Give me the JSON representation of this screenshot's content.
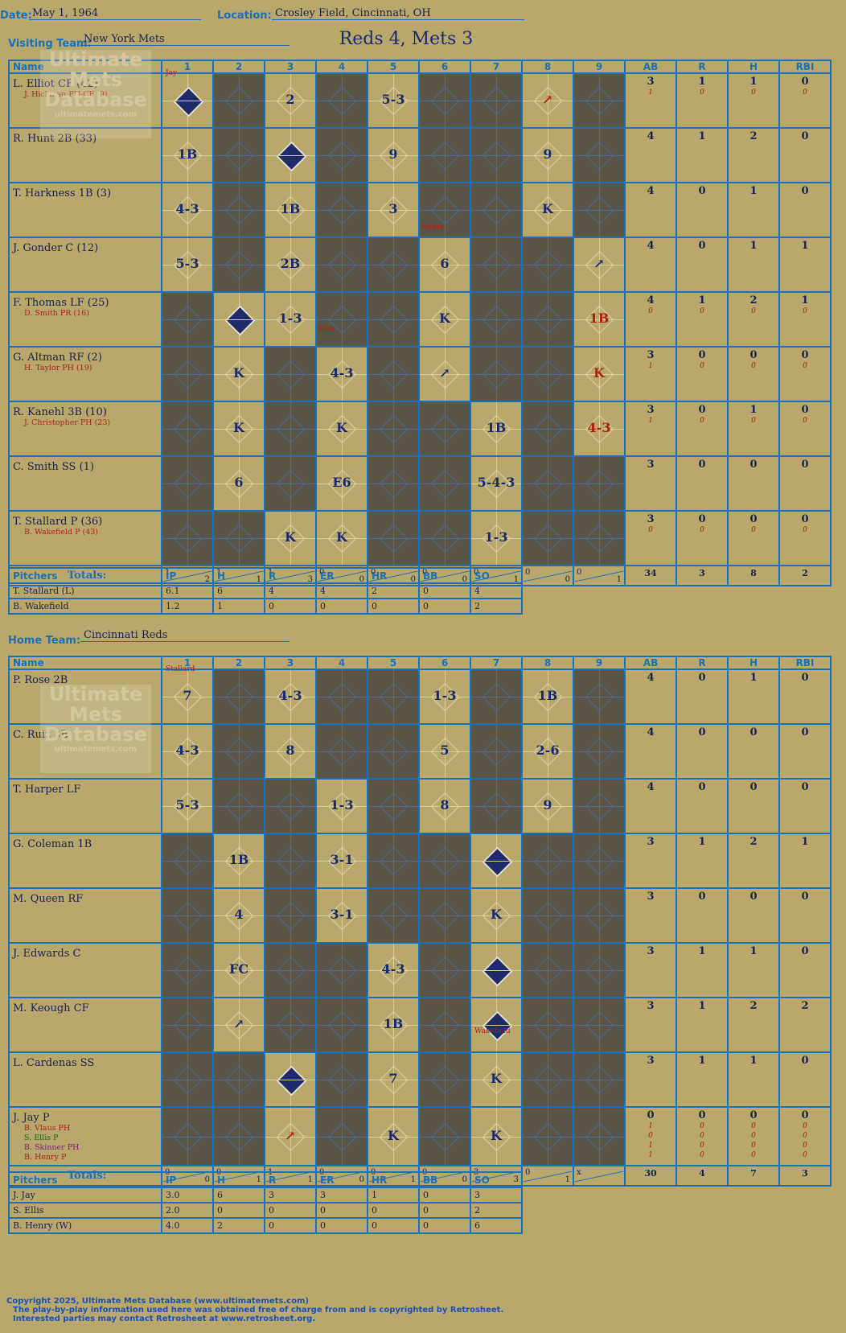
{
  "header": {
    "date_label": "Date:",
    "date": "May 1, 1964",
    "location_label": "Location:",
    "location": "Crosley Field, Cincinnati, OH",
    "visiting_label": "Visiting Team:",
    "visiting_team": "New York Mets",
    "home_label": "Home Team:",
    "home_team": "Cincinnati Reds",
    "final_score": "Reds 4, Mets 3"
  },
  "columns": {
    "name": "Name",
    "innings": [
      "1",
      "2",
      "3",
      "4",
      "5",
      "6",
      "7",
      "8",
      "9"
    ],
    "ab": "AB",
    "r": "R",
    "h": "H",
    "rbi": "RBI",
    "totals": "Totals:",
    "r_short": "R",
    "h_short": "H"
  },
  "watermark": {
    "line1": "Ultimate",
    "line2": "Mets",
    "line3": "Database",
    "url": "ultimatemets.com"
  },
  "visitors": {
    "players": [
      {
        "name": "L. Elliot CF (42)",
        "subs": [
          "J. Hickman PH-CF (9)"
        ],
        "ab": "3",
        "r": "1",
        "h": "1",
        "rbi": "0",
        "sub_stats": [
          [
            "1",
            "0",
            "0",
            "0"
          ]
        ]
      },
      {
        "name": "R. Hunt 2B (33)",
        "subs": [],
        "ab": "4",
        "r": "1",
        "h": "2",
        "rbi": "0",
        "sub_stats": []
      },
      {
        "name": "T. Harkness 1B (3)",
        "subs": [],
        "ab": "4",
        "r": "0",
        "h": "1",
        "rbi": "0",
        "sub_stats": []
      },
      {
        "name": "J. Gonder C (12)",
        "subs": [],
        "ab": "4",
        "r": "0",
        "h": "1",
        "rbi": "1",
        "sub_stats": []
      },
      {
        "name": "F. Thomas LF (25)",
        "subs": [
          "D. Smith PR (16)"
        ],
        "ab": "4",
        "r": "1",
        "h": "2",
        "rbi": "1",
        "sub_stats": [
          [
            "0",
            "0",
            "0",
            "0"
          ]
        ]
      },
      {
        "name": "G. Altman RF (2)",
        "subs": [
          "H. Taylor PH (19)"
        ],
        "ab": "3",
        "r": "0",
        "h": "0",
        "rbi": "0",
        "sub_stats": [
          [
            "1",
            "0",
            "0",
            "0"
          ]
        ]
      },
      {
        "name": "R. Kanehl 3B (10)",
        "subs": [
          "J. Christopher PH (23)"
        ],
        "ab": "3",
        "r": "0",
        "h": "1",
        "rbi": "0",
        "sub_stats": [
          [
            "1",
            "0",
            "0",
            "0"
          ]
        ]
      },
      {
        "name": "C. Smith SS (1)",
        "subs": [],
        "ab": "3",
        "r": "0",
        "h": "0",
        "rbi": "0",
        "sub_stats": []
      },
      {
        "name": "T. Stallard P (36)",
        "subs": [
          "B. Wakefield P (43)"
        ],
        "ab": "3",
        "r": "0",
        "h": "0",
        "rbi": "0",
        "sub_stats": [
          [
            "0",
            "0",
            "0",
            "0"
          ]
        ]
      }
    ],
    "innings_rh": [
      [
        "1",
        "2"
      ],
      [
        "1",
        "1"
      ],
      [
        "1",
        "3"
      ],
      [
        "0",
        "0"
      ],
      [
        "0",
        "0"
      ],
      [
        "0",
        "0"
      ],
      [
        "0",
        "1"
      ],
      [
        "0",
        "0"
      ],
      [
        "0",
        "1"
      ]
    ],
    "totals": {
      "ab": "34",
      "r": "3",
      "h": "8",
      "rbi": "2"
    }
  },
  "visitor_cells": [
    [
      "run",
      "dark",
      "2",
      "dark",
      "5-3",
      "dark",
      "dark",
      "arrow-red",
      "dark"
    ],
    [
      "1B",
      "dark",
      "run",
      "dark",
      "9",
      "dark",
      "dark",
      "9",
      "dark"
    ],
    [
      "4-3",
      "dark",
      "1B",
      "dark",
      "3",
      "dark",
      "dark",
      "K",
      "dark"
    ],
    [
      "5-3",
      "dark",
      "2B",
      "dark",
      "dark",
      "6",
      "dark",
      "dark",
      "arrow"
    ],
    [
      "dark",
      "run",
      "1-3",
      "dark",
      "dark",
      "K",
      "dark",
      "dark",
      "1B-red"
    ],
    [
      "dark",
      "K",
      "dark",
      "4-3",
      "dark",
      "arrow",
      "dark",
      "dark",
      "K-red"
    ],
    [
      "dark",
      "K",
      "dark",
      "K",
      "dark",
      "dark",
      "1B",
      "dark",
      "4-3-red"
    ],
    [
      "dark",
      "6",
      "dark",
      "E6",
      "dark",
      "dark",
      "5-4-3",
      "dark",
      "dark"
    ],
    [
      "dark",
      "dark",
      "K",
      "K",
      "dark",
      "dark",
      "1-3",
      "dark",
      "dark"
    ]
  ],
  "visitor_notes": {
    "jay": "Jay",
    "henry": "Henry",
    "ellis": "Ellis"
  },
  "visitor_pitching": {
    "headers": [
      "Pitchers",
      "IP",
      "H",
      "R",
      "ER",
      "HR",
      "BB",
      "SO"
    ],
    "rows": [
      [
        "T. Stallard (L)",
        "6.1",
        "6",
        "4",
        "4",
        "2",
        "0",
        "4"
      ],
      [
        "B. Wakefield",
        "1.2",
        "1",
        "0",
        "0",
        "0",
        "0",
        "2"
      ]
    ]
  },
  "home": {
    "players": [
      {
        "name": "P. Rose 2B",
        "subs": [],
        "ab": "4",
        "r": "0",
        "h": "1",
        "rbi": "0",
        "sub_stats": []
      },
      {
        "name": "C. Ruiz 3B",
        "subs": [],
        "ab": "4",
        "r": "0",
        "h": "0",
        "rbi": "0",
        "sub_stats": []
      },
      {
        "name": "T. Harper LF",
        "subs": [],
        "ab": "4",
        "r": "0",
        "h": "0",
        "rbi": "0",
        "sub_stats": []
      },
      {
        "name": "G. Coleman 1B",
        "subs": [],
        "ab": "3",
        "r": "1",
        "h": "2",
        "rbi": "1",
        "sub_stats": []
      },
      {
        "name": "M. Queen RF",
        "subs": [],
        "ab": "3",
        "r": "0",
        "h": "0",
        "rbi": "0",
        "sub_stats": []
      },
      {
        "name": "J. Edwards C",
        "subs": [],
        "ab": "3",
        "r": "1",
        "h": "1",
        "rbi": "0",
        "sub_stats": []
      },
      {
        "name": "M. Keough CF",
        "subs": [],
        "ab": "3",
        "r": "1",
        "h": "2",
        "rbi": "2",
        "sub_stats": []
      },
      {
        "name": "L. Cardenas SS",
        "subs": [],
        "ab": "3",
        "r": "1",
        "h": "1",
        "rbi": "0",
        "sub_stats": []
      },
      {
        "name": "J. Jay P",
        "subs": [
          "B. Vlaus PH",
          "S. Ellis P",
          "B. Skinner PH",
          "B. Henry P"
        ],
        "ab": "0",
        "r": "0",
        "h": "0",
        "rbi": "0",
        "sub_stats": [
          [
            "1",
            "0",
            "0",
            "0"
          ],
          [
            "0",
            "0",
            "0",
            "0"
          ],
          [
            "1",
            "0",
            "0",
            "0"
          ],
          [
            "1",
            "0",
            "0",
            "0"
          ]
        ]
      }
    ],
    "innings_rh": [
      [
        "0",
        "0"
      ],
      [
        "0",
        "1"
      ],
      [
        "1",
        "1"
      ],
      [
        "0",
        "0"
      ],
      [
        "0",
        "1"
      ],
      [
        "0",
        "0"
      ],
      [
        "3",
        "3"
      ],
      [
        "0",
        "1"
      ],
      [
        "x",
        ""
      ]
    ],
    "totals": {
      "ab": "30",
      "r": "4",
      "h": "7",
      "rbi": "3"
    }
  },
  "home_cells": [
    [
      "7",
      "dark",
      "4-3",
      "dark",
      "dark",
      "1-3",
      "dark",
      "1B",
      "dark"
    ],
    [
      "4-3",
      "dark",
      "8",
      "dark",
      "dark",
      "5",
      "dark",
      "2-6",
      "dark"
    ],
    [
      "5-3",
      "dark",
      "dark",
      "1-3",
      "dark",
      "8",
      "dark",
      "9",
      "dark"
    ],
    [
      "dark",
      "1B",
      "dark",
      "3-1",
      "dark",
      "dark",
      "run",
      "dark",
      "dark"
    ],
    [
      "dark",
      "4",
      "dark",
      "3-1",
      "dark",
      "dark",
      "K",
      "dark",
      "dark"
    ],
    [
      "dark",
      "FC",
      "dark",
      "dark",
      "4-3",
      "dark",
      "run",
      "dark",
      "dark"
    ],
    [
      "dark",
      "arrow",
      "dark",
      "dark",
      "1B",
      "dark",
      "run",
      "dark",
      "dark"
    ],
    [
      "dark",
      "dark",
      "run",
      "dark",
      "7",
      "dark",
      "K",
      "dark",
      "dark"
    ],
    [
      "dark",
      "dark",
      "arrow-red",
      "dark",
      "K",
      "dark",
      "K",
      "dark",
      "dark"
    ]
  ],
  "home_notes": {
    "stallard": "Stallard",
    "wakefield": "Wakefield"
  },
  "home_pitching": {
    "headers": [
      "Pitchers",
      "IP",
      "H",
      "R",
      "ER",
      "HR",
      "BB",
      "SO"
    ],
    "rows": [
      [
        "J. Jay",
        "3.0",
        "6",
        "3",
        "3",
        "1",
        "0",
        "3"
      ],
      [
        "S. Ellis",
        "2.0",
        "0",
        "0",
        "0",
        "0",
        "0",
        "2"
      ],
      [
        "B. Henry (W)",
        "4.0",
        "2",
        "0",
        "0",
        "0",
        "0",
        "6"
      ]
    ]
  },
  "footer": {
    "line1": "Copyright 2025, Ultimate Mets Database (www.ultimatemets.com)",
    "line2": "The play-by-play information used here was obtained free of charge from and is copyrighted by Retrosheet.",
    "line3": "Interested parties may contact Retrosheet at www.retrosheet.org."
  }
}
